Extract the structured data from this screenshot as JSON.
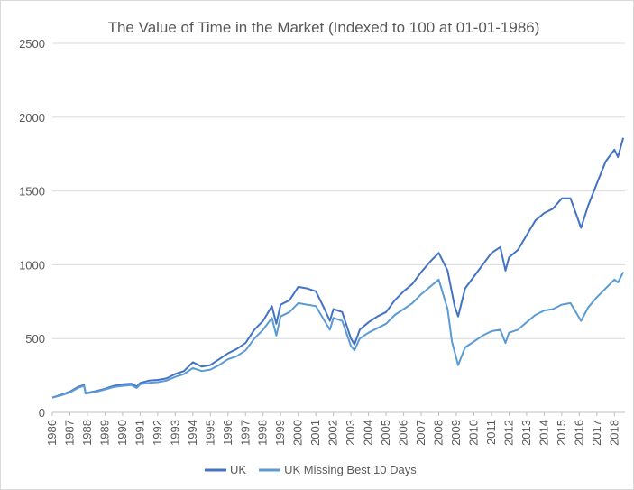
{
  "chart_data": {
    "type": "line",
    "title": "The Value of Time in the Market (Indexed to 100 at 01-01-1986)",
    "xlabel": "",
    "ylabel": "",
    "xlim": [
      1986,
      2018.6
    ],
    "ylim": [
      0,
      2500
    ],
    "yticks": [
      "0",
      "500",
      "1000",
      "1500",
      "2000",
      "2500"
    ],
    "xticks": [
      "1986",
      "1987",
      "1988",
      "1989",
      "1990",
      "1991",
      "1992",
      "1993",
      "1994",
      "1995",
      "1996",
      "1997",
      "1998",
      "1999",
      "2000",
      "2001",
      "2002",
      "2003",
      "2004",
      "2005",
      "2006",
      "2007",
      "2008",
      "2009",
      "2010",
      "2011",
      "2012",
      "2013",
      "2014",
      "2015",
      "2016",
      "2017",
      "2018"
    ],
    "grid": true,
    "legend_position": "bottom",
    "series": [
      {
        "name": "UK",
        "color": "#4472c4",
        "x": [
          1986,
          1986.5,
          1987,
          1987.5,
          1987.8,
          1987.9,
          1988.5,
          1989,
          1989.5,
          1990,
          1990.5,
          1990.8,
          1991,
          1991.5,
          1992,
          1992.5,
          1993,
          1993.5,
          1994,
          1994.5,
          1995,
          1995.5,
          1996,
          1996.5,
          1997,
          1997.5,
          1998,
          1998.5,
          1998.75,
          1999,
          1999.5,
          2000,
          2000.5,
          2001,
          2001.5,
          2001.8,
          2002,
          2002.5,
          2003,
          2003.2,
          2003.5,
          2004,
          2004.5,
          2005,
          2005.5,
          2006,
          2006.5,
          2007,
          2007.5,
          2008,
          2008.5,
          2008.9,
          2009.1,
          2009.5,
          2010,
          2010.5,
          2011,
          2011.5,
          2011.8,
          2012,
          2012.5,
          2013,
          2013.5,
          2014,
          2014.5,
          2015,
          2015.5,
          2016.1,
          2016.5,
          2017,
          2017.5,
          2018,
          2018.2,
          2018.5
        ],
        "values": [
          100,
          120,
          140,
          175,
          185,
          130,
          145,
          160,
          180,
          190,
          195,
          175,
          200,
          215,
          220,
          230,
          260,
          280,
          340,
          310,
          320,
          360,
          400,
          430,
          470,
          560,
          620,
          720,
          600,
          730,
          760,
          850,
          840,
          820,
          700,
          620,
          700,
          680,
          500,
          460,
          560,
          610,
          650,
          680,
          760,
          820,
          870,
          950,
          1020,
          1080,
          960,
          720,
          650,
          840,
          920,
          1000,
          1080,
          1120,
          960,
          1050,
          1100,
          1200,
          1300,
          1350,
          1380,
          1450,
          1450,
          1250,
          1400,
          1550,
          1700,
          1780,
          1730,
          1860
        ]
      },
      {
        "name": "UK Missing Best 10 Days",
        "color": "#5b9bd5",
        "x": [
          1986,
          1986.5,
          1987,
          1987.5,
          1987.8,
          1987.9,
          1988.5,
          1989,
          1989.5,
          1990,
          1990.5,
          1990.8,
          1991,
          1991.5,
          1992,
          1992.5,
          1993,
          1993.5,
          1994,
          1994.5,
          1995,
          1995.5,
          1996,
          1996.5,
          1997,
          1997.5,
          1998,
          1998.5,
          1998.75,
          1999,
          1999.5,
          2000,
          2000.5,
          2001,
          2001.5,
          2001.8,
          2002,
          2002.5,
          2003,
          2003.2,
          2003.5,
          2004,
          2004.5,
          2005,
          2005.5,
          2006,
          2006.5,
          2007,
          2007.5,
          2008,
          2008.5,
          2008.75,
          2009.1,
          2009.5,
          2010,
          2010.5,
          2011,
          2011.5,
          2011.8,
          2012,
          2012.5,
          2013,
          2013.5,
          2014,
          2014.5,
          2015,
          2015.5,
          2016.1,
          2016.5,
          2017,
          2017.5,
          2018,
          2018.2,
          2018.5
        ],
        "values": [
          100,
          115,
          135,
          168,
          180,
          128,
          140,
          155,
          172,
          180,
          185,
          165,
          190,
          200,
          205,
          215,
          240,
          260,
          300,
          280,
          290,
          320,
          360,
          380,
          420,
          500,
          560,
          640,
          520,
          650,
          680,
          740,
          730,
          720,
          620,
          560,
          640,
          620,
          450,
          420,
          500,
          540,
          570,
          600,
          660,
          700,
          740,
          800,
          850,
          900,
          700,
          480,
          320,
          440,
          480,
          520,
          550,
          560,
          470,
          540,
          560,
          610,
          660,
          690,
          700,
          730,
          740,
          620,
          710,
          780,
          840,
          900,
          880,
          950
        ]
      }
    ]
  }
}
